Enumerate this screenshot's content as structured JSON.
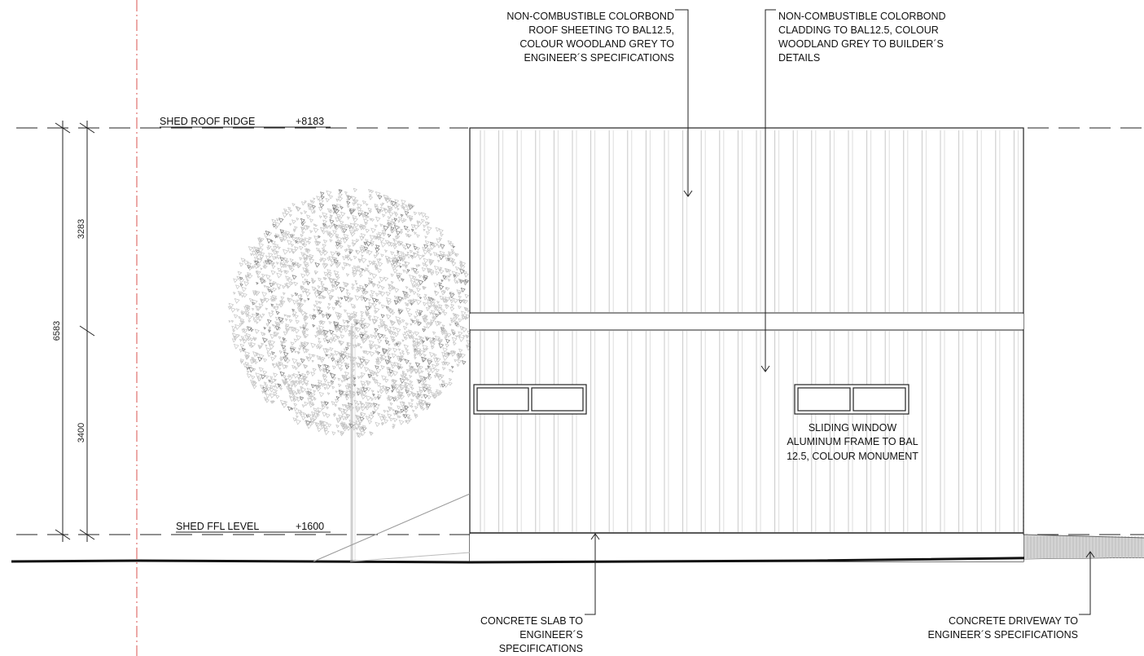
{
  "levels": {
    "roof_ridge": {
      "label": "SHED ROOF RIDGE",
      "value": "+8183"
    },
    "ffl": {
      "label": "SHED FFL LEVEL",
      "value": "+1600"
    }
  },
  "dimensions": {
    "overall": "6583",
    "upper": "3283",
    "lower": "3400"
  },
  "notes": {
    "roof_sheeting": [
      "NON-COMBUSTIBLE COLORBOND",
      "ROOF SHEETING TO BAL12.5,",
      "COLOUR WOODLAND GREY TO",
      "ENGINEER´S SPECIFICATIONS"
    ],
    "cladding": [
      "NON-COMBUSTIBLE COLORBOND",
      "CLADDING TO BAL12.5, COLOUR",
      "WOODLAND GREY TO BUILDER´S",
      "DETAILS"
    ],
    "window": [
      "SLIDING WINDOW",
      "ALUMINUM FRAME TO BAL",
      "12.5, COLOUR MONUMENT"
    ],
    "slab": [
      "CONCRETE SLAB TO",
      "ENGINEER´S",
      "SPECIFICATIONS"
    ],
    "driveway": [
      "CONCRETE DRIVEWAY TO",
      "ENGINEER´S SPECIFICATIONS"
    ]
  },
  "colors": {
    "boundary_line": "#d9534f",
    "cladding_rib": "#c8c8c8",
    "linework": "#222222"
  }
}
